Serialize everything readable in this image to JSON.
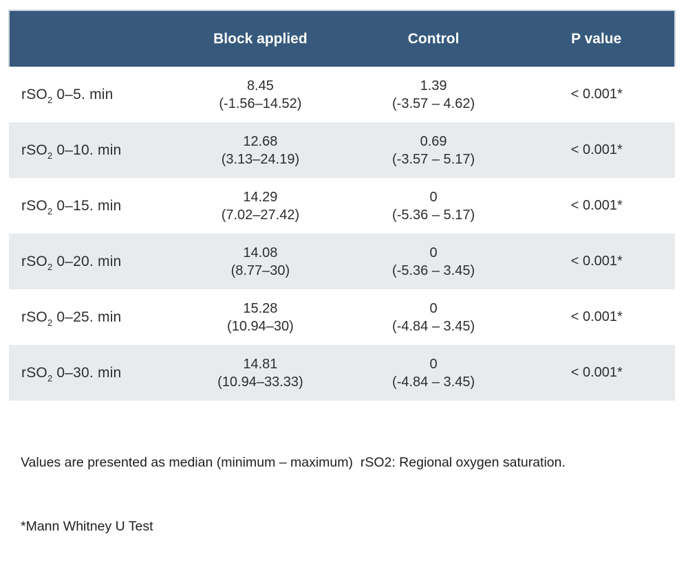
{
  "colors": {
    "header_bg": "#36597c",
    "header_text": "#ffffff",
    "header_border": "#c9d3dd",
    "row_alt_bg": "#e8ebee",
    "row_bg": "#ffffff",
    "body_text": "#2d2d2d"
  },
  "table": {
    "headers": [
      "",
      "Block applied",
      "Control",
      "P value"
    ],
    "rows": [
      {
        "label_main": "rSO",
        "label_sub": "2",
        "label_rest": " 0–5. min",
        "block_median": "8.45",
        "block_range": "(-1.56–14.52)",
        "control_median": "1.39",
        "control_range": "(-3.57 – 4.62)",
        "p_value": "< 0.001*"
      },
      {
        "label_main": "rSO",
        "label_sub": "2",
        "label_rest": " 0–10. min",
        "block_median": "12.68",
        "block_range": "(3.13–24.19)",
        "control_median": "0.69",
        "control_range": "(-3.57 – 5.17)",
        "p_value": "< 0.001*"
      },
      {
        "label_main": "rSO",
        "label_sub": "2",
        "label_rest": " 0–15. min",
        "block_median": "14.29",
        "block_range": "(7.02–27.42)",
        "control_median": "0",
        "control_range": "(-5.36 – 5.17)",
        "p_value": "< 0.001*"
      },
      {
        "label_main": "rSO",
        "label_sub": "2",
        "label_rest": " 0–20. min",
        "block_median": "14.08",
        "block_range": "(8.77–30)",
        "control_median": "0",
        "control_range": "(-5.36 – 3.45)",
        "p_value": "< 0.001*"
      },
      {
        "label_main": "rSO",
        "label_sub": "2",
        "label_rest": " 0–25. min",
        "block_median": "15.28",
        "block_range": "(10.94–30)",
        "control_median": "0",
        "control_range": "(-4.84 – 3.45)",
        "p_value": "< 0.001*"
      },
      {
        "label_main": "rSO",
        "label_sub": "2",
        "label_rest": " 0–30. min",
        "block_median": "14.81",
        "block_range": "(10.94–33.33)",
        "control_median": "0",
        "control_range": "(-4.84 – 3.45)",
        "p_value": "< 0.001*"
      }
    ]
  },
  "footnote": {
    "line1": "Values are presented as median (minimum – maximum)  rSO2: Regional oxygen saturation.",
    "line2": "*Mann Whitney U Test"
  },
  "chart_data": {
    "type": "table",
    "title": "Change in rSO2 over time: Block applied vs Control",
    "columns": [
      "",
      "Block applied",
      "Control",
      "P value"
    ],
    "rows": [
      [
        "rSO2 0–5. min",
        "8.45 (-1.56–14.52)",
        "1.39 (-3.57 – 4.62)",
        "< 0.001*"
      ],
      [
        "rSO2 0–10. min",
        "12.68 (3.13–24.19)",
        "0.69 (-3.57 – 5.17)",
        "< 0.001*"
      ],
      [
        "rSO2 0–15. min",
        "14.29 (7.02–27.42)",
        "0 (-5.36 – 5.17)",
        "< 0.001*"
      ],
      [
        "rSO2 0–20. min",
        "14.08 (8.77–30)",
        "0 (-5.36 – 3.45)",
        "< 0.001*"
      ],
      [
        "rSO2 0–25. min",
        "15.28 (10.94–30)",
        "0 (-4.84 – 3.45)",
        "< 0.001*"
      ],
      [
        "rSO2 0–30. min",
        "14.81 (10.94–33.33)",
        "0 (-4.84 – 3.45)",
        "< 0.001*"
      ]
    ],
    "notes": [
      "Values are presented as median (minimum – maximum)",
      "rSO2: Regional oxygen saturation.",
      "*Mann Whitney U Test"
    ]
  }
}
